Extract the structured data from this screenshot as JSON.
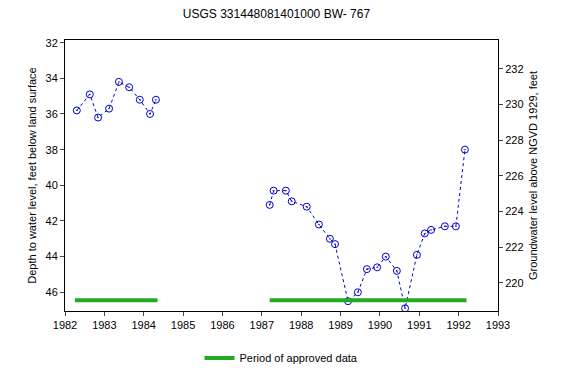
{
  "chart_data": {
    "type": "line",
    "title": "USGS 331448081401000 BW- 767",
    "x_label": "",
    "y_label": "Depth to water level, feet below land surface",
    "y2_label": "Groundwater level above NGVD 1929, feet",
    "xlim": [
      1982,
      1993
    ],
    "xticks": [
      1982,
      1983,
      1984,
      1985,
      1986,
      1987,
      1988,
      1989,
      1990,
      1991,
      1992,
      1993
    ],
    "ylim": [
      47.05,
      31.85
    ],
    "yticks": [
      32,
      34,
      36,
      38,
      40,
      42,
      44,
      46
    ],
    "y2lim": [
      218.42,
      233.62
    ],
    "y2ticks": [
      220,
      222,
      224,
      226,
      228,
      230,
      232
    ],
    "grid": false,
    "legend": "bottom",
    "x": [
      1982.3,
      1982.63,
      1982.84,
      1983.12,
      1983.37,
      1983.63,
      1983.9,
      1984.16,
      1984.31,
      null,
      1987.2,
      1987.3,
      1987.61,
      1987.76,
      1988.14,
      1988.45,
      1988.73,
      1988.86,
      1989.19,
      1989.44,
      1989.67,
      1989.93,
      1990.15,
      1990.43,
      1990.64,
      1990.94,
      1991.14,
      1991.3,
      1991.65,
      1991.93,
      1992.16
    ],
    "series": [
      {
        "color": "#0000cc",
        "marker": "circle-open-dot",
        "line_style": "dot",
        "values": [
          35.8,
          34.9,
          36.2,
          35.7,
          34.2,
          34.5,
          35.2,
          36.0,
          35.2,
          null,
          41.1,
          40.3,
          40.3,
          40.9,
          41.2,
          42.2,
          43.0,
          43.3,
          46.5,
          46.0,
          44.7,
          44.6,
          44.0,
          44.8,
          46.9,
          43.9,
          42.7,
          42.5,
          42.3,
          42.3,
          38.0
        ]
      }
    ],
    "approved_periods": {
      "name": "Period of approved data",
      "color": "#22aa22",
      "ranges": [
        [
          1982.25,
          1984.35
        ],
        [
          1987.2,
          1992.2
        ]
      ]
    }
  }
}
